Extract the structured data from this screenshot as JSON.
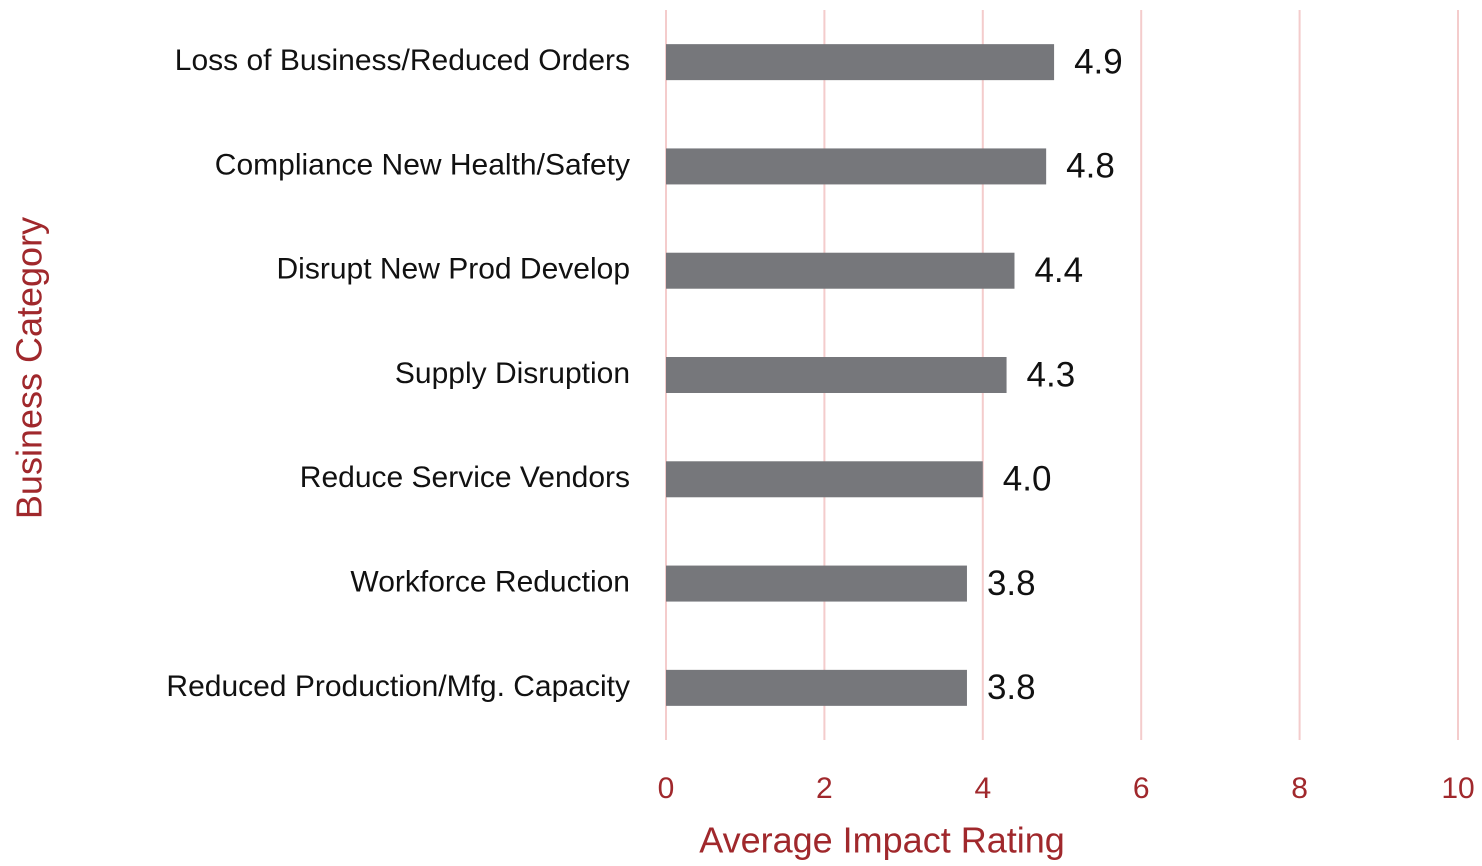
{
  "chart_data": {
    "type": "bar",
    "orientation": "horizontal",
    "x_label": "Average Impact Rating",
    "y_label": "Business Category",
    "categories": [
      "Loss of Business/Reduced Orders",
      "Compliance New Health/Safety",
      "Disrupt New Prod Develop",
      "Supply Disruption",
      "Reduce Service Vendors",
      "Workforce Reduction",
      "Reduced Production/Mfg. Capacity"
    ],
    "values": [
      4.9,
      4.8,
      4.4,
      4.3,
      4.0,
      3.8,
      3.8
    ],
    "value_labels": [
      "4.9",
      "4.8",
      "4.4",
      "4.3",
      "4.0",
      "3.8",
      "3.8"
    ],
    "color": "#76777b",
    "grid": true,
    "grid_color": "#f4cccc",
    "xlim": [
      0,
      10
    ],
    "xticks": [
      0,
      2,
      4,
      6,
      8,
      10
    ]
  }
}
